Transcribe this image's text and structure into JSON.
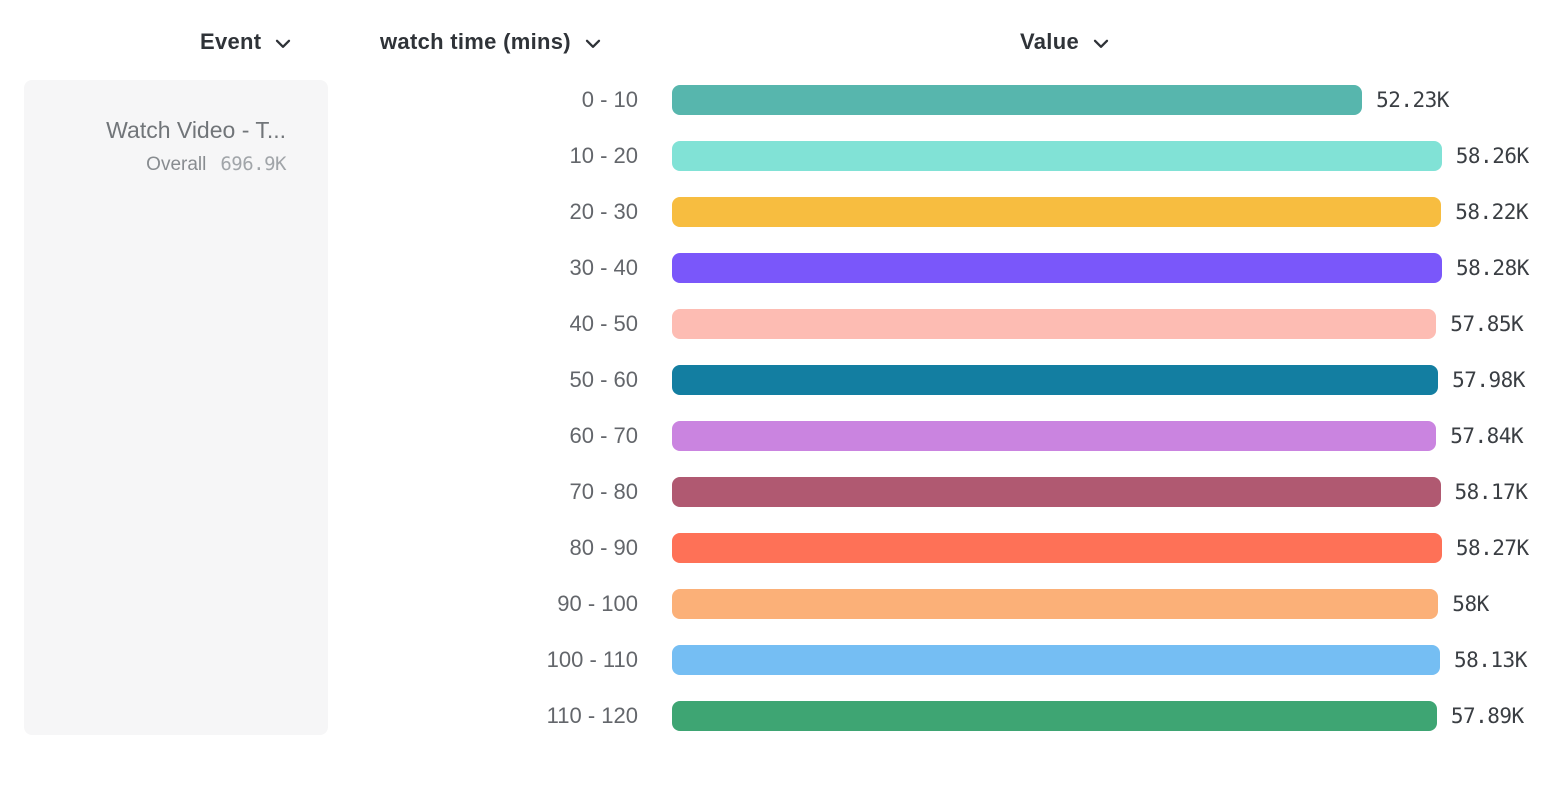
{
  "header": {
    "event": {
      "label": "Event"
    },
    "breakdown": {
      "label": "watch time (mins)"
    },
    "value": {
      "label": "Value"
    }
  },
  "legend": {
    "event_name": "Watch Video - T...",
    "overall_label": "Overall",
    "overall_value": "696.9K"
  },
  "chart_data": {
    "type": "bar",
    "orientation": "horizontal",
    "title": "",
    "xlabel": "Value",
    "ylabel": "watch time (mins)",
    "xlim": [
      0,
      58280
    ],
    "grid": false,
    "legend_position": "left",
    "categories": [
      "0 - 10",
      "10 - 20",
      "20 - 30",
      "30 - 40",
      "40 - 50",
      "50 - 60",
      "60 - 70",
      "70 - 80",
      "80 - 90",
      "90 - 100",
      "100 - 110",
      "110 - 120"
    ],
    "values": [
      52230,
      58260,
      58220,
      58280,
      57850,
      57980,
      57840,
      58170,
      58270,
      58000,
      58130,
      57890
    ],
    "value_labels": [
      "52.23K",
      "58.26K",
      "58.22K",
      "58.28K",
      "57.85K",
      "57.98K",
      "57.84K",
      "58.17K",
      "58.27K",
      "58K",
      "58.13K",
      "57.89K"
    ],
    "bar_colors": [
      "#57B6AD",
      "#81E2D6",
      "#F7BD40",
      "#7A57FA",
      "#FDBCB3",
      "#137EA1",
      "#CA84E0",
      "#B05971",
      "#FE7157",
      "#FBB078",
      "#75BEF3",
      "#3EA573"
    ]
  }
}
